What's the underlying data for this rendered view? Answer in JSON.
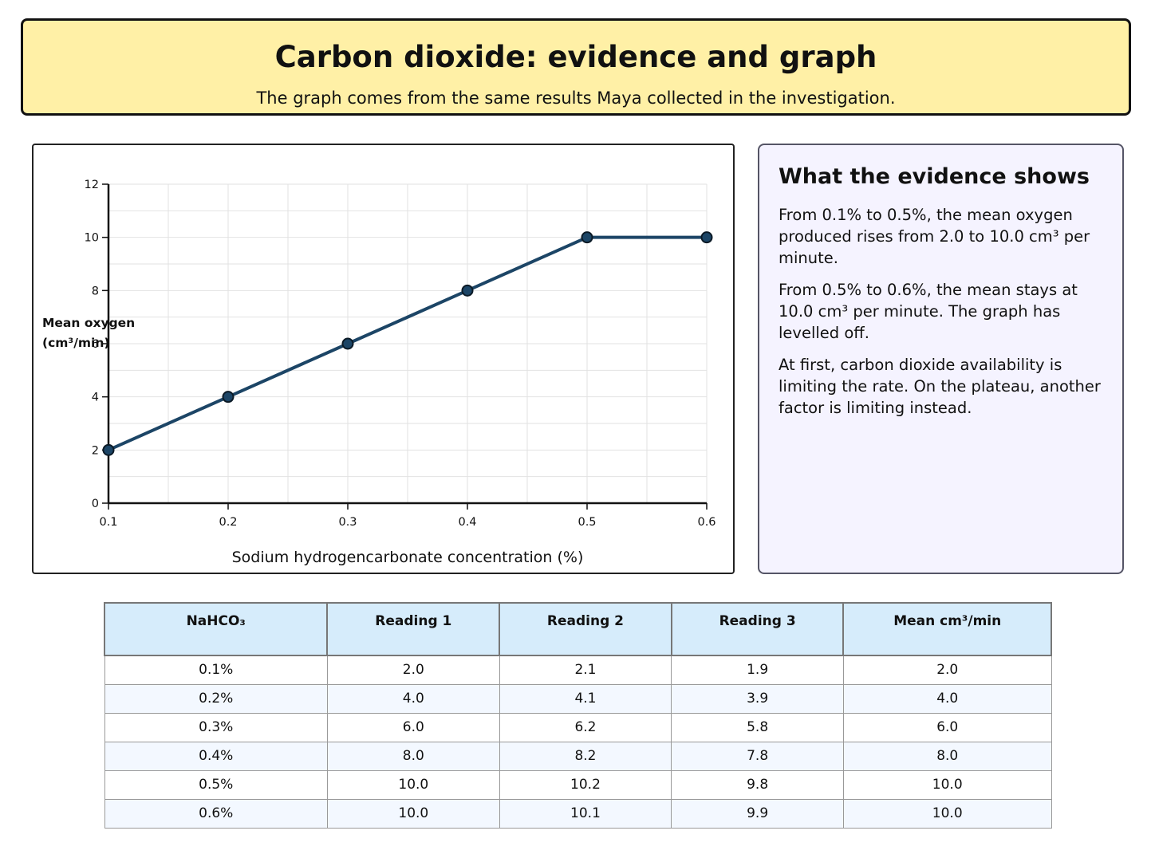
{
  "header": {
    "title": "Carbon dioxide: evidence and graph",
    "subtitle": "The graph comes from the same results Maya collected in the investigation."
  },
  "chart_data": {
    "type": "line",
    "x": [
      0.1,
      0.2,
      0.3,
      0.4,
      0.5,
      0.6
    ],
    "series": [
      {
        "values": [
          2.0,
          4.0,
          6.0,
          8.0,
          10.0,
          10.0
        ]
      }
    ],
    "title": "",
    "xlabel": "Sodium hydrogencarbonate concentration (%)",
    "ylabel_lines": [
      "Mean oxygen",
      "(cm³/min)"
    ],
    "xlim": [
      0.1,
      0.6
    ],
    "ylim": [
      0,
      12
    ],
    "x_ticks": [
      "0.1",
      "0.2",
      "0.3",
      "0.4",
      "0.5",
      "0.6"
    ],
    "y_ticks": [
      "0",
      "2",
      "4",
      "6",
      "8",
      "10",
      "12"
    ],
    "grid": true,
    "line_color": "#1c4566",
    "marker_color": "#1c4566"
  },
  "evidence": {
    "heading": "What the evidence shows",
    "paragraphs": [
      "From 0.1% to 0.5%, the mean oxygen produced rises from 2.0 to 10.0 cm³ per minute.",
      "From 0.5% to 0.6%, the mean stays at 10.0 cm³ per minute. The graph has levelled off.",
      "At first, carbon dioxide availability is limiting the rate. On the plateau, another factor is limiting instead."
    ]
  },
  "table": {
    "headers": [
      "NaHCO₃",
      "Reading 1",
      "Reading 2",
      "Reading 3",
      "Mean cm³/min"
    ],
    "rows": [
      [
        "0.1%",
        "2.0",
        "2.1",
        "1.9",
        "2.0"
      ],
      [
        "0.2%",
        "4.0",
        "4.1",
        "3.9",
        "4.0"
      ],
      [
        "0.3%",
        "6.0",
        "6.2",
        "5.8",
        "6.0"
      ],
      [
        "0.4%",
        "8.0",
        "8.2",
        "7.8",
        "8.0"
      ],
      [
        "0.5%",
        "10.0",
        "10.2",
        "9.8",
        "10.0"
      ],
      [
        "0.6%",
        "10.0",
        "10.1",
        "9.9",
        "10.0"
      ]
    ]
  }
}
